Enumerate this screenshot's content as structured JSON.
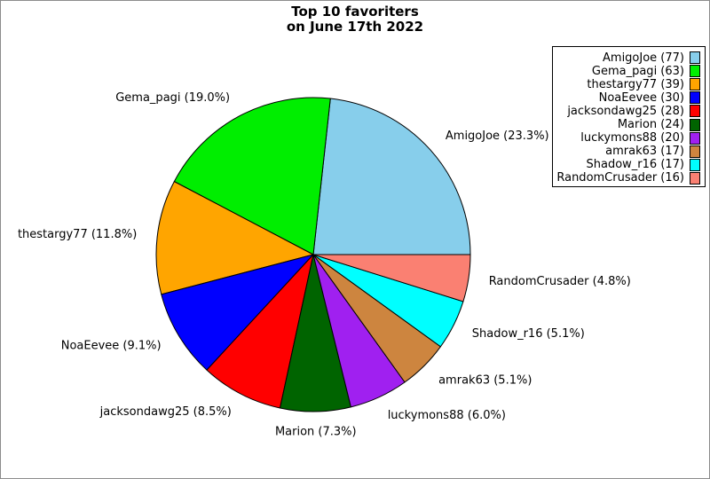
{
  "title": {
    "line1": "Top 10 favoriters",
    "line2": "on June 17th 2022"
  },
  "chart_data": {
    "type": "pie",
    "title": "Top 10 favoriters on June 17th 2022",
    "start_angle_deg": 0,
    "direction": "counterclockwise",
    "legend_position": "upper-right",
    "label_format": "name (pct%)",
    "legend_format": "name (count)",
    "slices": [
      {
        "name": "AmigoJoe",
        "count": 77,
        "pct": "23.3",
        "color": "#87CEEB"
      },
      {
        "name": "Gema_pagi",
        "count": 63,
        "pct": "19.0",
        "color": "#00EE00"
      },
      {
        "name": "thestargy77",
        "count": 39,
        "pct": "11.8",
        "color": "#FFA500"
      },
      {
        "name": "NoaEevee",
        "count": 30,
        "pct": "9.1",
        "color": "#0000FF"
      },
      {
        "name": "jacksondawg25",
        "count": 28,
        "pct": "8.5",
        "color": "#FF0000"
      },
      {
        "name": "Marion",
        "count": 24,
        "pct": "7.3",
        "color": "#006400"
      },
      {
        "name": "luckymons88",
        "count": 20,
        "pct": "6.0",
        "color": "#A020F0"
      },
      {
        "name": "amrak63",
        "count": 17,
        "pct": "5.1",
        "color": "#CD853F"
      },
      {
        "name": "Shadow_r16",
        "count": 17,
        "pct": "5.1",
        "color": "#00FFFF"
      },
      {
        "name": "RandomCrusader",
        "count": 16,
        "pct": "4.8",
        "color": "#FA8072"
      }
    ]
  }
}
